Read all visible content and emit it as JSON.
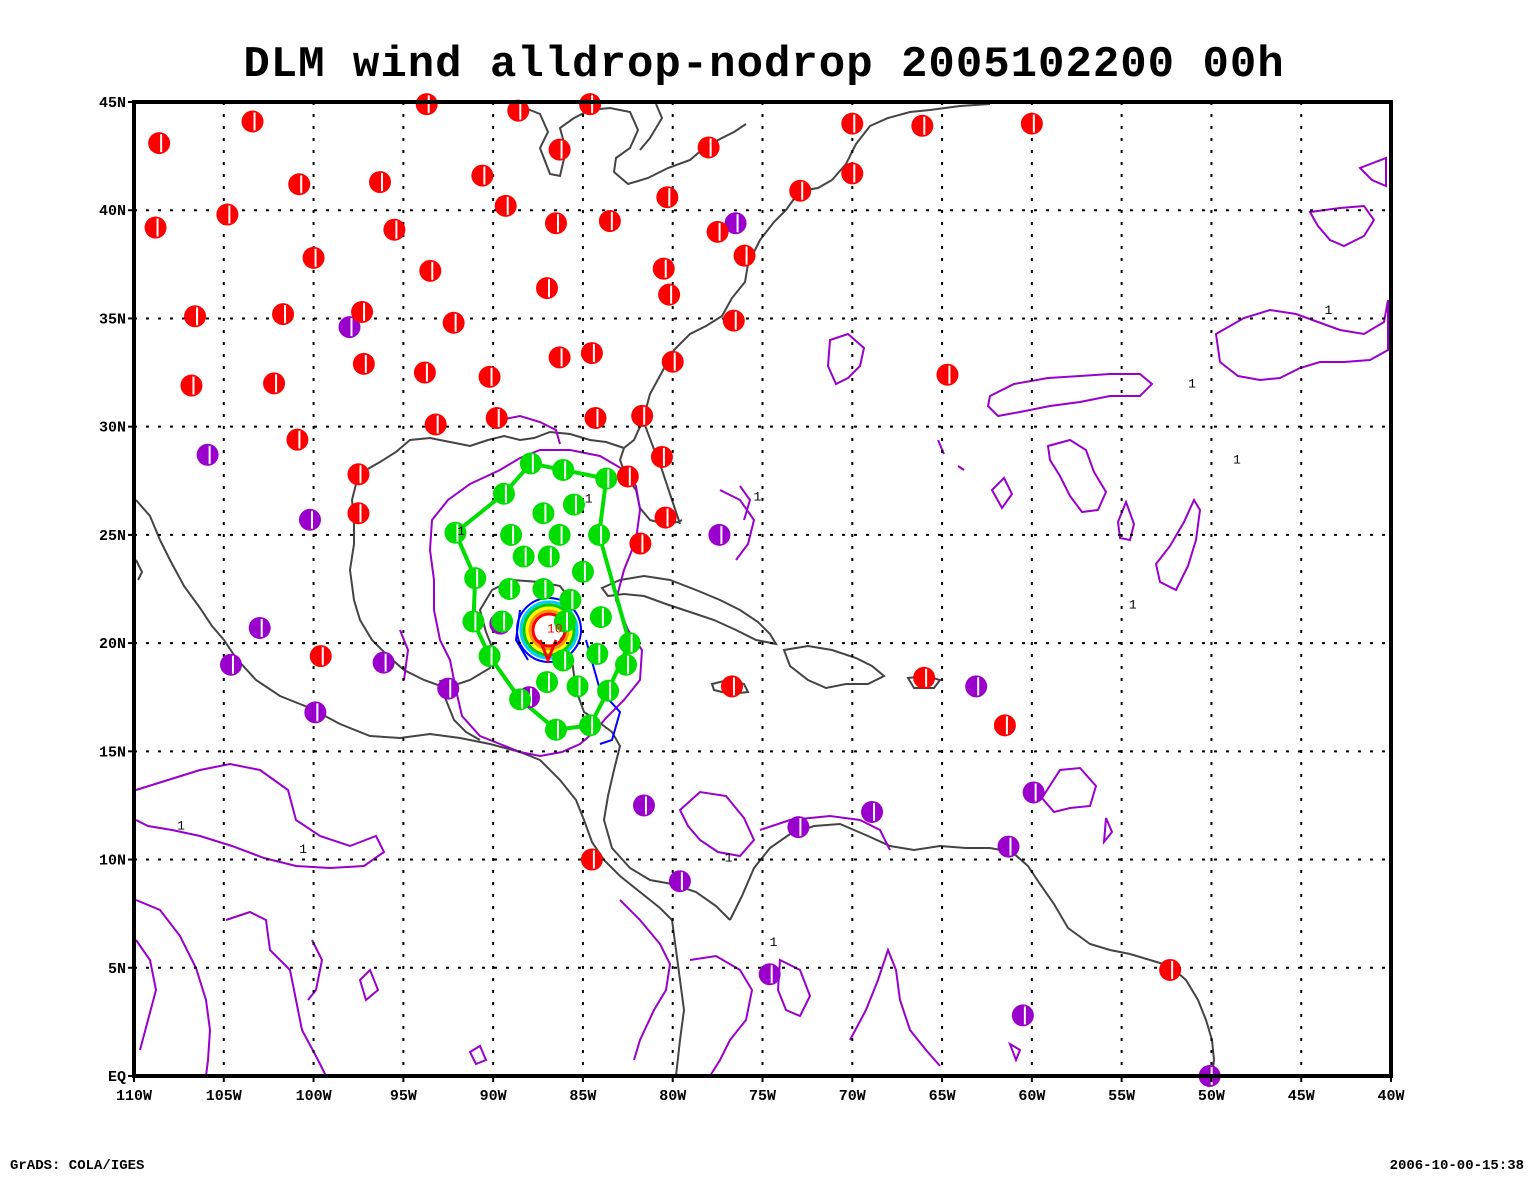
{
  "title": "DLM wind alldrop-nodrop 2005102200 00h",
  "footer": {
    "credit": "GrADS: COLA/IGES",
    "timestamp": "2006-10-00-15:38"
  },
  "map": {
    "lon_range": [
      -110,
      -40
    ],
    "lat_range": [
      0,
      45
    ],
    "x_ticks": [
      {
        "lon": -110,
        "label": "110W"
      },
      {
        "lon": -105,
        "label": "105W"
      },
      {
        "lon": -100,
        "label": "100W"
      },
      {
        "lon": -95,
        "label": "95W"
      },
      {
        "lon": -90,
        "label": "90W"
      },
      {
        "lon": -85,
        "label": "85W"
      },
      {
        "lon": -80,
        "label": "80W"
      },
      {
        "lon": -75,
        "label": "75W"
      },
      {
        "lon": -70,
        "label": "70W"
      },
      {
        "lon": -65,
        "label": "65W"
      },
      {
        "lon": -60,
        "label": "60W"
      },
      {
        "lon": -55,
        "label": "55W"
      },
      {
        "lon": -50,
        "label": "50W"
      },
      {
        "lon": -45,
        "label": "45W"
      },
      {
        "lon": -40,
        "label": "40W"
      }
    ],
    "y_ticks": [
      {
        "lat": 0,
        "label": "EQ"
      },
      {
        "lat": 5,
        "label": "5N"
      },
      {
        "lat": 10,
        "label": "10N"
      },
      {
        "lat": 15,
        "label": "15N"
      },
      {
        "lat": 20,
        "label": "20N"
      },
      {
        "lat": 25,
        "label": "25N"
      },
      {
        "lat": 30,
        "label": "30N"
      },
      {
        "lat": 35,
        "label": "35N"
      },
      {
        "lat": 40,
        "label": "40N"
      },
      {
        "lat": 45,
        "label": "45N"
      }
    ],
    "colors": {
      "raob": "#ff0000",
      "surface": "#9a00cc",
      "dropsonde": "#00dd00",
      "coast": "#444444",
      "contour": "#9900cc",
      "core": "#ff0000"
    },
    "stations_red": [
      [
        -108.6,
        43.1
      ],
      [
        -103.4,
        44.1
      ],
      [
        -93.7,
        44.9
      ],
      [
        -88.6,
        44.6
      ],
      [
        -84.6,
        44.9
      ],
      [
        -108.8,
        39.2
      ],
      [
        -104.8,
        39.8
      ],
      [
        -100.8,
        41.2
      ],
      [
        -96.3,
        41.3
      ],
      [
        -90.6,
        41.6
      ],
      [
        -89.3,
        40.2
      ],
      [
        -86.3,
        42.8
      ],
      [
        -80.3,
        40.6
      ],
      [
        -78.0,
        42.9
      ],
      [
        -72.9,
        40.9
      ],
      [
        -70.0,
        41.7
      ],
      [
        -70.0,
        44.0
      ],
      [
        -66.1,
        43.9
      ],
      [
        -60.0,
        44.0
      ],
      [
        -100.0,
        37.8
      ],
      [
        -95.5,
        39.1
      ],
      [
        -93.5,
        37.2
      ],
      [
        -86.5,
        39.4
      ],
      [
        -87.0,
        36.4
      ],
      [
        -83.5,
        39.5
      ],
      [
        -80.5,
        37.3
      ],
      [
        -80.2,
        36.1
      ],
      [
        -77.5,
        39.0
      ],
      [
        -76.0,
        37.9
      ],
      [
        -76.6,
        34.9
      ],
      [
        -106.6,
        35.1
      ],
      [
        -101.7,
        35.2
      ],
      [
        -97.3,
        35.3
      ],
      [
        -92.2,
        34.8
      ],
      [
        -86.3,
        33.2
      ],
      [
        -84.5,
        33.4
      ],
      [
        -80.0,
        33.0
      ],
      [
        -106.8,
        31.9
      ],
      [
        -102.2,
        32.0
      ],
      [
        -97.2,
        32.9
      ],
      [
        -93.8,
        32.5
      ],
      [
        -90.2,
        32.3
      ],
      [
        -100.9,
        29.4
      ],
      [
        -93.2,
        30.1
      ],
      [
        -89.8,
        30.4
      ],
      [
        -84.3,
        30.4
      ],
      [
        -81.7,
        30.5
      ],
      [
        -80.6,
        28.6
      ],
      [
        -97.5,
        27.8
      ],
      [
        -97.5,
        26.0
      ],
      [
        -82.5,
        27.7
      ],
      [
        -80.4,
        25.8
      ],
      [
        -81.8,
        24.6
      ],
      [
        -99.6,
        19.4
      ],
      [
        -76.7,
        18.0
      ],
      [
        -66.0,
        18.4
      ],
      [
        -64.7,
        32.4
      ],
      [
        -61.5,
        16.2
      ],
      [
        -84.5,
        10.0
      ],
      [
        -52.3,
        4.9
      ]
    ],
    "stations_surface": [
      [
        -76.5,
        39.4
      ],
      [
        -98.0,
        34.6
      ],
      [
        -105.9,
        28.7
      ],
      [
        -100.2,
        25.7
      ],
      [
        -103.0,
        20.7
      ],
      [
        -104.6,
        19.0
      ],
      [
        -96.1,
        19.1
      ],
      [
        -92.5,
        17.9
      ],
      [
        -99.9,
        16.8
      ],
      [
        -88.0,
        17.5
      ],
      [
        -89.6,
        20.9
      ],
      [
        -77.4,
        25.0
      ],
      [
        -63.1,
        18.0
      ],
      [
        -59.9,
        13.1
      ],
      [
        -68.9,
        12.2
      ],
      [
        -73.0,
        11.5
      ],
      [
        -81.6,
        12.5
      ],
      [
        -79.6,
        9.0
      ],
      [
        -74.6,
        4.7
      ],
      [
        -61.3,
        10.6
      ],
      [
        -60.5,
        2.8
      ],
      [
        -50.1,
        0.0
      ]
    ],
    "drops": [
      [
        -87.9,
        28.3
      ],
      [
        -86.1,
        28.0
      ],
      [
        -89.4,
        26.9
      ],
      [
        -87.2,
        26.0
      ],
      [
        -85.5,
        26.4
      ],
      [
        -83.7,
        27.6
      ],
      [
        -92.1,
        25.1
      ],
      [
        -89.0,
        25.0
      ],
      [
        -86.3,
        25.0
      ],
      [
        -84.1,
        25.0
      ],
      [
        -91.0,
        23.0
      ],
      [
        -88.3,
        24.0
      ],
      [
        -86.9,
        24.0
      ],
      [
        -85.0,
        23.3
      ],
      [
        -89.1,
        22.5
      ],
      [
        -87.2,
        22.5
      ],
      [
        -85.7,
        22.0
      ],
      [
        -91.1,
        21.0
      ],
      [
        -89.5,
        21.0
      ],
      [
        -86.0,
        21.0
      ],
      [
        -84.0,
        21.2
      ],
      [
        -82.4,
        20.0
      ],
      [
        -90.2,
        19.4
      ],
      [
        -86.1,
        19.2
      ],
      [
        -84.2,
        19.5
      ],
      [
        -87.0,
        18.2
      ],
      [
        -85.3,
        18.0
      ],
      [
        -83.6,
        17.8
      ],
      [
        -88.5,
        17.4
      ],
      [
        -86.5,
        16.0
      ],
      [
        -84.6,
        16.2
      ],
      [
        -82.6,
        19.0
      ]
    ],
    "drop_path": [
      [
        -87.9,
        28.3
      ],
      [
        -86.1,
        28.0
      ],
      [
        -83.7,
        27.6
      ],
      [
        -84.1,
        25.0
      ],
      [
        -82.4,
        20.0
      ],
      [
        -83.6,
        17.8
      ],
      [
        -84.6,
        16.2
      ],
      [
        -86.5,
        16.0
      ],
      [
        -88.5,
        17.4
      ],
      [
        -90.2,
        19.4
      ],
      [
        -91.1,
        21.0
      ],
      [
        -91.0,
        23.0
      ],
      [
        -92.1,
        25.1
      ],
      [
        -89.4,
        26.9
      ],
      [
        -87.9,
        28.3
      ]
    ],
    "contour_labels": [
      {
        "lon": -92.0,
        "lat": 25.0,
        "text": "1"
      },
      {
        "lon": -75.5,
        "lat": 26.6,
        "text": "1"
      },
      {
        "lon": -54.6,
        "lat": 21.6,
        "text": "1"
      },
      {
        "lon": -48.8,
        "lat": 28.3,
        "text": "1"
      },
      {
        "lon": -43.7,
        "lat": 35.2,
        "text": "1"
      },
      {
        "lon": -51.3,
        "lat": 31.8,
        "text": "1"
      },
      {
        "lon": -107.6,
        "lat": 11.4,
        "text": "1"
      },
      {
        "lon": -100.8,
        "lat": 10.3,
        "text": "1"
      },
      {
        "lon": -77.1,
        "lat": 9.9,
        "text": "1"
      },
      {
        "lon": -74.6,
        "lat": 6.0,
        "text": "1"
      },
      {
        "lon": -84.9,
        "lat": 26.5,
        "text": "1"
      },
      {
        "lon": -87.0,
        "lat": 20.5,
        "text": "10"
      }
    ]
  }
}
